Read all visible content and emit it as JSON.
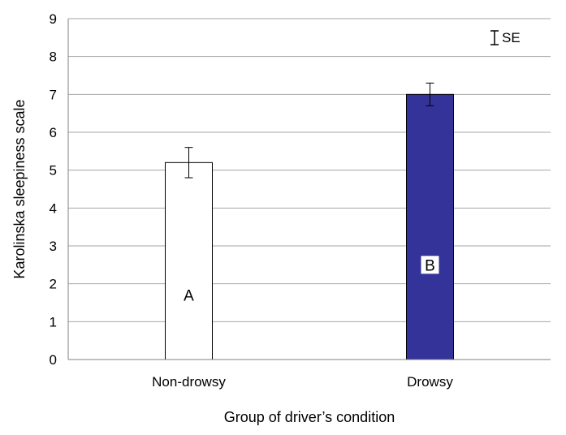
{
  "chart_data": {
    "type": "bar",
    "categories": [
      "Non-drowsy",
      "Drowsy"
    ],
    "values": [
      5.2,
      7.0
    ],
    "errors": [
      0.4,
      0.3
    ],
    "bar_letters": [
      "A",
      "B"
    ],
    "colors": {
      "non_drowsy": "#ffffff",
      "drowsy": "#333399",
      "grid": "#a6a6a6",
      "axis": "#808080"
    },
    "xlabel": "Group of driver’s condition",
    "ylabel": "Karolinska sleepiness scale",
    "ylim": [
      0,
      9
    ],
    "yticks": [
      "0",
      "1",
      "2",
      "3",
      "4",
      "5",
      "6",
      "7",
      "8",
      "9"
    ],
    "grid": true,
    "legend": {
      "label": "SE",
      "position": "top-right"
    }
  }
}
